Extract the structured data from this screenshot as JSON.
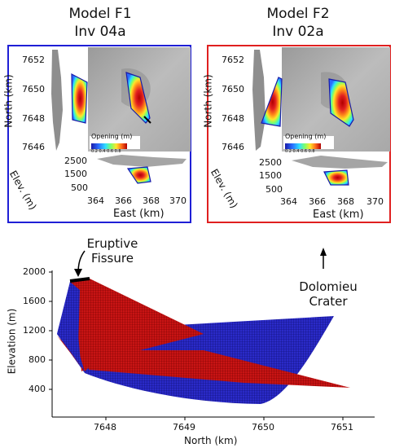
{
  "titles": {
    "left": [
      "Model F1",
      "Inv 04a"
    ],
    "right": [
      "Model F2",
      "Inv 02a"
    ]
  },
  "colors": {
    "left_frame": "#1f1fd6",
    "right_frame": "#e02020",
    "mesh_red": "#c81414",
    "mesh_blue": "#2a2ac8"
  },
  "map": {
    "north_ticks": [
      "7652",
      "7650",
      "7648",
      "7646"
    ],
    "elev_ticks": [
      "2500",
      "1500",
      "500"
    ],
    "east_ticks": [
      "364",
      "366",
      "368",
      "370"
    ],
    "north_label": "North (km)",
    "elev_label": "Elev. (m)",
    "east_label": "East (km)",
    "colorbar_title": "Opening (m)",
    "colorbar_ticks": "0.2  0.4  0.6  0.8"
  },
  "bottom": {
    "y_ticks": [
      "2000",
      "1600",
      "1200",
      "800",
      "400"
    ],
    "x_ticks": [
      "7648",
      "7649",
      "7650",
      "7651"
    ],
    "ylabel": "Elevation (m)",
    "xlabel": "North (km)",
    "annotation_fissure": [
      "Eruptive",
      "Fissure"
    ],
    "annotation_crater": [
      "Dolomieu",
      "Crater"
    ]
  }
}
